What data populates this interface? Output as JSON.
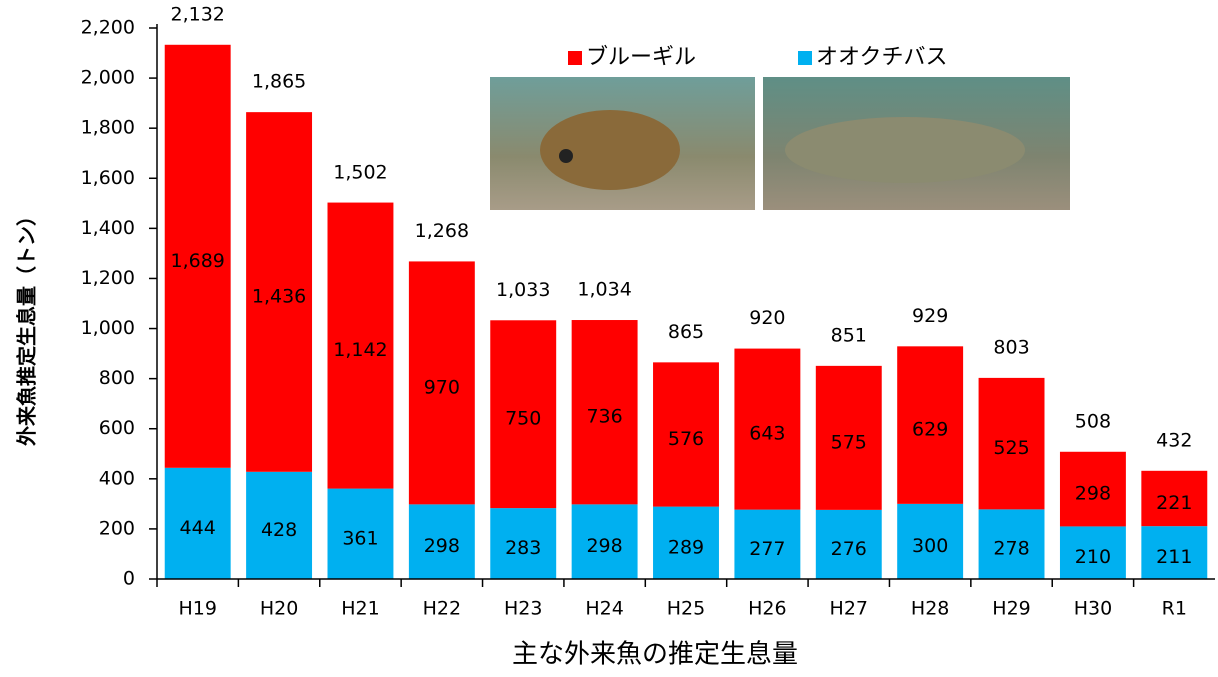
{
  "chart_data": {
    "type": "stacked_bar",
    "title": "主な外来魚の推定生息量",
    "y_label": "外来魚推定生息量（トン）",
    "categories": [
      "H19",
      "H20",
      "H21",
      "H22",
      "H23",
      "H24",
      "H25",
      "H26",
      "H27",
      "H28",
      "H29",
      "H30",
      "R1"
    ],
    "series": [
      {
        "name": "オオクチバス",
        "color": "#00b0f0",
        "values": [
          444,
          428,
          361,
          298,
          283,
          298,
          289,
          277,
          276,
          300,
          278,
          210,
          211
        ]
      },
      {
        "name": "ブルーギル",
        "color": "#ff0000",
        "values": [
          1689,
          1436,
          1142,
          970,
          750,
          736,
          576,
          643,
          575,
          629,
          525,
          298,
          221
        ],
        "value_labels": [
          "1,689",
          "1,436",
          "1,142",
          "970",
          "750",
          "736",
          "576",
          "643",
          "575",
          "629",
          "525",
          "298",
          "221"
        ]
      }
    ],
    "totals": {
      "values": [
        2132,
        1865,
        1502,
        1268,
        1033,
        1034,
        865,
        920,
        851,
        929,
        803,
        508,
        432
      ],
      "value_labels": [
        "2,132",
        "1,865",
        "1,502",
        "1,268",
        "1,033",
        "1,034",
        "865",
        "920",
        "851",
        "929",
        "803",
        "508",
        "432"
      ]
    },
    "ylim": [
      0,
      2200
    ],
    "yticks": [
      0,
      200,
      400,
      600,
      800,
      {
        "value": 1000,
        "label": "1,000"
      },
      {
        "value": 1200,
        "label": "1,200"
      },
      {
        "value": 1400,
        "label": "1,400"
      },
      {
        "value": 1600,
        "label": "1,600"
      },
      {
        "value": 1800,
        "label": "1,800"
      },
      {
        "value": 2000,
        "label": "2,000"
      },
      {
        "value": 2200,
        "label": "2,200"
      }
    ],
    "grid": false
  }
}
